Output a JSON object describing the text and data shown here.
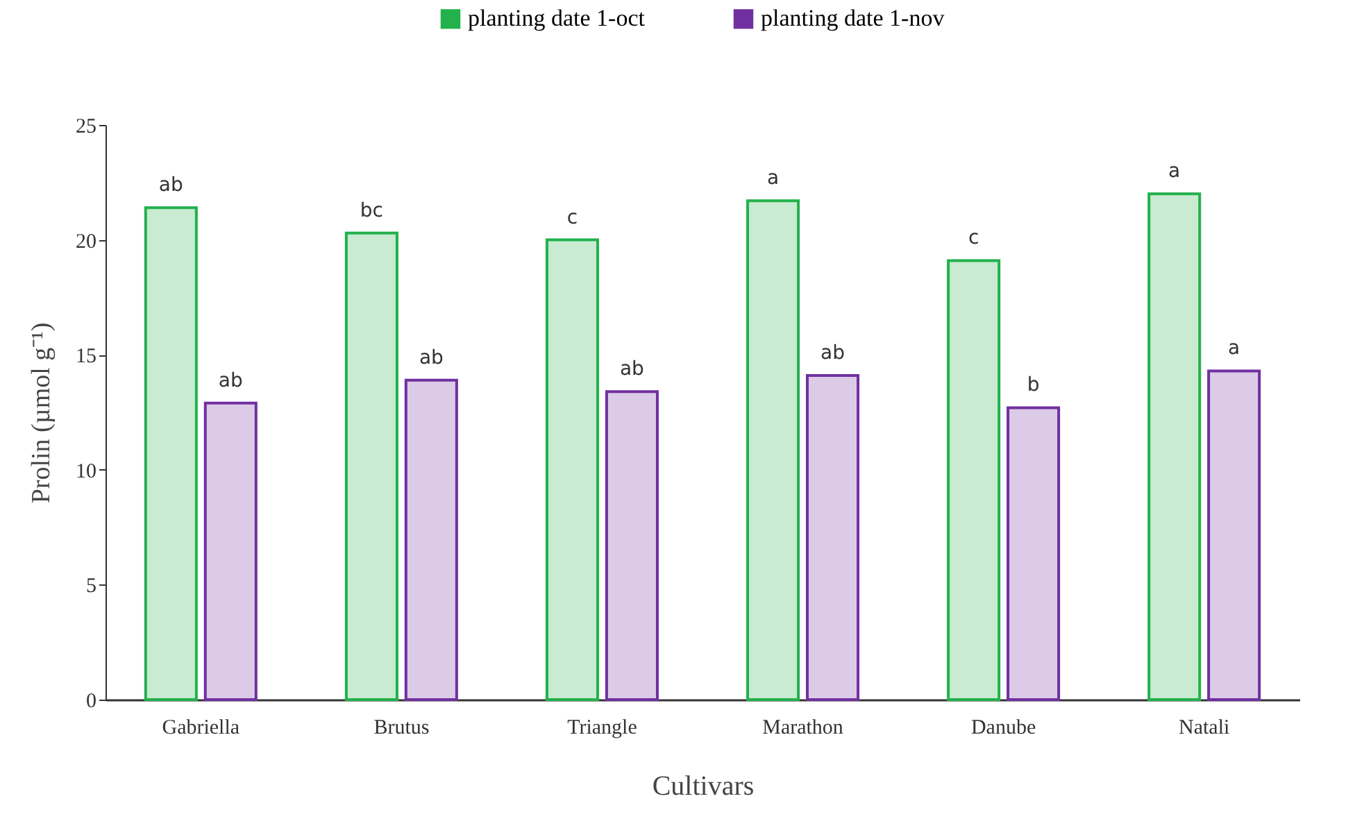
{
  "chart_data": {
    "type": "bar",
    "xlabel": "Cultivars",
    "ylabel": "Prolin (µmol g⁻¹)",
    "categories": [
      "Gabriella",
      "Brutus",
      "Triangle",
      "Marathon",
      "Danube",
      "Natali"
    ],
    "series": [
      {
        "name": "planting date 1-oct",
        "color": "#22b14c",
        "values": [
          21.4,
          20.3,
          20.0,
          21.7,
          19.1,
          22.0
        ],
        "value_labels": [
          "ab",
          "bc",
          "c",
          "a",
          "c",
          "a"
        ]
      },
      {
        "name": "planting date 1-nov",
        "color": "#7030a0",
        "values": [
          12.9,
          13.9,
          13.4,
          14.1,
          12.7,
          14.3
        ],
        "value_labels": [
          "ab",
          "ab",
          "ab",
          "ab",
          "b",
          "a"
        ]
      }
    ],
    "ylim": [
      0,
      25
    ],
    "yticks": [
      0,
      5,
      10,
      15,
      20,
      25
    ],
    "grid": false,
    "legend": "top"
  }
}
